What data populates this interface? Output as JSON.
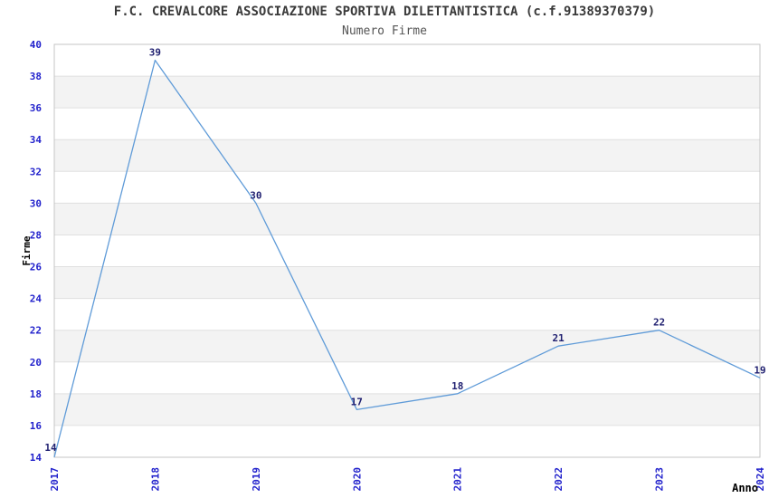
{
  "page": {
    "title": "F.C. CREVALCORE ASSOCIAZIONE SPORTIVA DILETTANTISTICA (c.f.91389370379)",
    "subtitle": "Numero Firme"
  },
  "chart_data": {
    "type": "line",
    "title": "F.C. CREVALCORE ASSOCIAZIONE SPORTIVA DILETTANTISTICA (c.f.91389370379)",
    "subtitle": "Numero Firme",
    "xlabel": "Anno",
    "ylabel": "Firme",
    "categories": [
      2017,
      2018,
      2019,
      2020,
      2021,
      2022,
      2023,
      2024
    ],
    "series": [
      {
        "name": "Firme",
        "values": [
          14,
          39,
          30,
          17,
          18,
          21,
          22,
          19
        ]
      }
    ],
    "data_labels": [
      14,
      39,
      30,
      17,
      18,
      21,
      22,
      19
    ],
    "ylim": [
      14,
      40
    ],
    "ytick_step": 2,
    "yticks": [
      14,
      16,
      18,
      20,
      22,
      24,
      26,
      28,
      30,
      32,
      34,
      36,
      38,
      40
    ],
    "grid": "horizontal",
    "legend": "none",
    "background_bands": "alternating",
    "colors": {
      "line": "#5F9BD8",
      "tick_label": "#2222CC",
      "data_label": "#1F1F70",
      "band_gray": "#F3F3F3",
      "band_white": "#FFFFFF",
      "gridline": "#E0E0E0",
      "plot_border": "#C4C4C4",
      "title": "#3A3A3A",
      "subtitle": "#555555",
      "axis_title": "#000000"
    }
  }
}
